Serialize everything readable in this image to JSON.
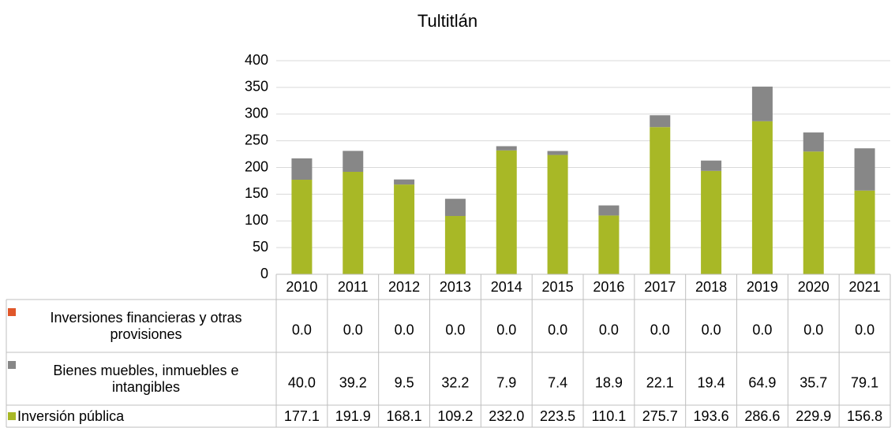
{
  "chart_data": {
    "type": "stacked_bar",
    "title": "Tultitlán",
    "categories": [
      "2010",
      "2011",
      "2012",
      "2013",
      "2014",
      "2015",
      "2016",
      "2017",
      "2018",
      "2019",
      "2020",
      "2021"
    ],
    "series": [
      {
        "name": "Inversiones financieras y otras provisiones",
        "color": "#e0572a",
        "values": [
          0,
          0,
          0,
          0,
          0,
          0,
          0,
          0,
          0,
          0,
          0,
          0
        ],
        "value_labels": [
          "0.0",
          "0.0",
          "0.0",
          "0.0",
          "0.0",
          "0.0",
          "0.0",
          "0.0",
          "0.0",
          "0.0",
          "0.0",
          "0.0"
        ]
      },
      {
        "name": "Bienes muebles, inmuebles e intangibles",
        "color": "#878787",
        "values": [
          40,
          39.2,
          9.5,
          32.2,
          7.9,
          7.4,
          18.9,
          22.1,
          19.4,
          64.9,
          35.7,
          79.1
        ],
        "value_labels": [
          "40.0",
          "39.2",
          "9.5",
          "32.2",
          "7.9",
          "7.4",
          "18.9",
          "22.1",
          "19.4",
          "64.9",
          "35.7",
          "79.1"
        ]
      },
      {
        "name": "Inversión pública",
        "color": "#a8b826",
        "values": [
          177.1,
          191.9,
          168.1,
          109.2,
          232,
          223.5,
          110.1,
          275.7,
          193.6,
          286.6,
          229.9,
          156.8
        ],
        "value_labels": [
          "177.1",
          "191.9",
          "168.1",
          "109.2",
          "232.0",
          "223.5",
          "110.1",
          "275.7",
          "193.6",
          "286.6",
          "229.9",
          "156.8"
        ]
      }
    ],
    "ylim": [
      0,
      400
    ],
    "yticks": [
      0,
      50,
      100,
      150,
      200,
      250,
      300,
      350,
      400
    ],
    "grid": true
  }
}
